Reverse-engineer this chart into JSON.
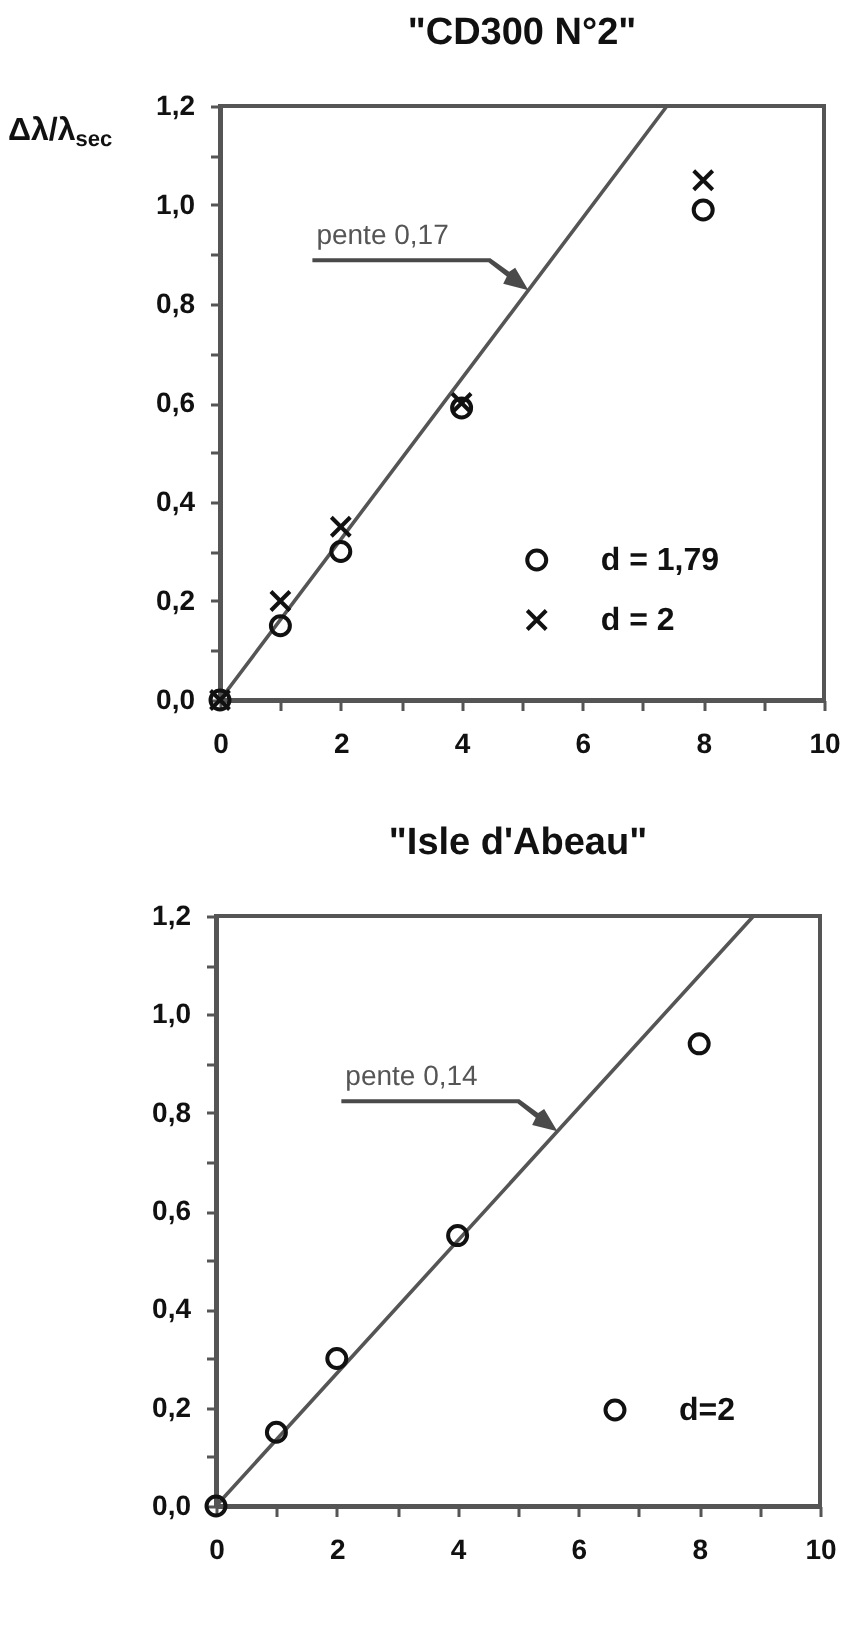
{
  "chart_data": [
    {
      "type": "scatter",
      "title": "\"CD300 N°2\"",
      "ylabel": "Δλ/λ$_{sec}$",
      "x": [
        0,
        1,
        2,
        4,
        8
      ],
      "series": [
        {
          "name": "d = 1,79",
          "color": "#111111",
          "marker": "circle",
          "values": [
            0,
            0.15,
            0.3,
            0.59,
            0.99
          ]
        },
        {
          "name": "d = 2",
          "color": "#111111",
          "marker": "cross",
          "values": [
            0,
            0.2,
            0.35,
            0.6,
            1.05
          ]
        },
        {
          "type": "line",
          "color": "#555555",
          "x": [
            0,
            7.4
          ],
          "values": [
            0,
            1.2
          ]
        }
      ],
      "xlim": [
        0,
        10
      ],
      "ylim": [
        0,
        1.2
      ],
      "xticks": [
        0,
        {
          "value": 1,
          "label": null
        },
        2,
        {
          "value": 3,
          "label": null
        },
        4,
        {
          "value": 5,
          "label": null
        },
        6,
        {
          "value": 7,
          "label": null
        },
        8,
        {
          "value": 9,
          "label": null
        },
        10
      ],
      "yticks": [
        {
          "value": 0,
          "label": "0,0"
        },
        {
          "value": 0.1,
          "label": null
        },
        {
          "value": 0.2,
          "label": "0,2"
        },
        {
          "value": 0.3,
          "label": null
        },
        {
          "value": 0.4,
          "label": "0,4"
        },
        {
          "value": 0.5,
          "label": null
        },
        {
          "value": 0.6,
          "label": "0,6"
        },
        {
          "value": 0.7,
          "label": null
        },
        {
          "value": 0.8,
          "label": "0,8"
        },
        {
          "value": 0.9,
          "label": null
        },
        {
          "value": 1.0,
          "label": "1,0"
        },
        {
          "value": 1.1,
          "label": null
        },
        {
          "value": 1.2,
          "label": "1,2"
        }
      ],
      "legend": "bottom right",
      "annotations": [
        "pente 0,17"
      ]
    },
    {
      "type": "scatter",
      "title": "\"Isle d'Abeau\"",
      "x": [
        0,
        1,
        2,
        4,
        8
      ],
      "series": [
        {
          "name": "d=2",
          "color": "#111111",
          "marker": "circle",
          "values": [
            0,
            0.15,
            0.3,
            0.55,
            0.94
          ]
        },
        {
          "type": "line",
          "color": "#555555",
          "x": [
            0,
            8.9
          ],
          "values": [
            0,
            1.2
          ]
        }
      ],
      "xlim": [
        0,
        10
      ],
      "ylim": [
        0,
        1.2
      ],
      "xticks": [
        0,
        {
          "value": 1,
          "label": null
        },
        2,
        {
          "value": 3,
          "label": null
        },
        4,
        {
          "value": 5,
          "label": null
        },
        6,
        {
          "value": 7,
          "label": null
        },
        8,
        {
          "value": 9,
          "label": null
        },
        10
      ],
      "yticks": [
        {
          "value": 0,
          "label": "0,0"
        },
        {
          "value": 0.1,
          "label": null
        },
        {
          "value": 0.2,
          "label": "0,2"
        },
        {
          "value": 0.3,
          "label": null
        },
        {
          "value": 0.4,
          "label": "0,4"
        },
        {
          "value": 0.5,
          "label": null
        },
        {
          "value": 0.6,
          "label": "0,6"
        },
        {
          "value": 0.7,
          "label": null
        },
        {
          "value": 0.8,
          "label": "0,8"
        },
        {
          "value": 0.9,
          "label": null
        },
        {
          "value": 1.0,
          "label": "1,0"
        },
        {
          "value": 1.1,
          "label": null
        },
        {
          "value": 1.2,
          "label": "1,2"
        }
      ],
      "legend": "bottom right",
      "annotations": [
        "pente 0,14"
      ]
    }
  ]
}
